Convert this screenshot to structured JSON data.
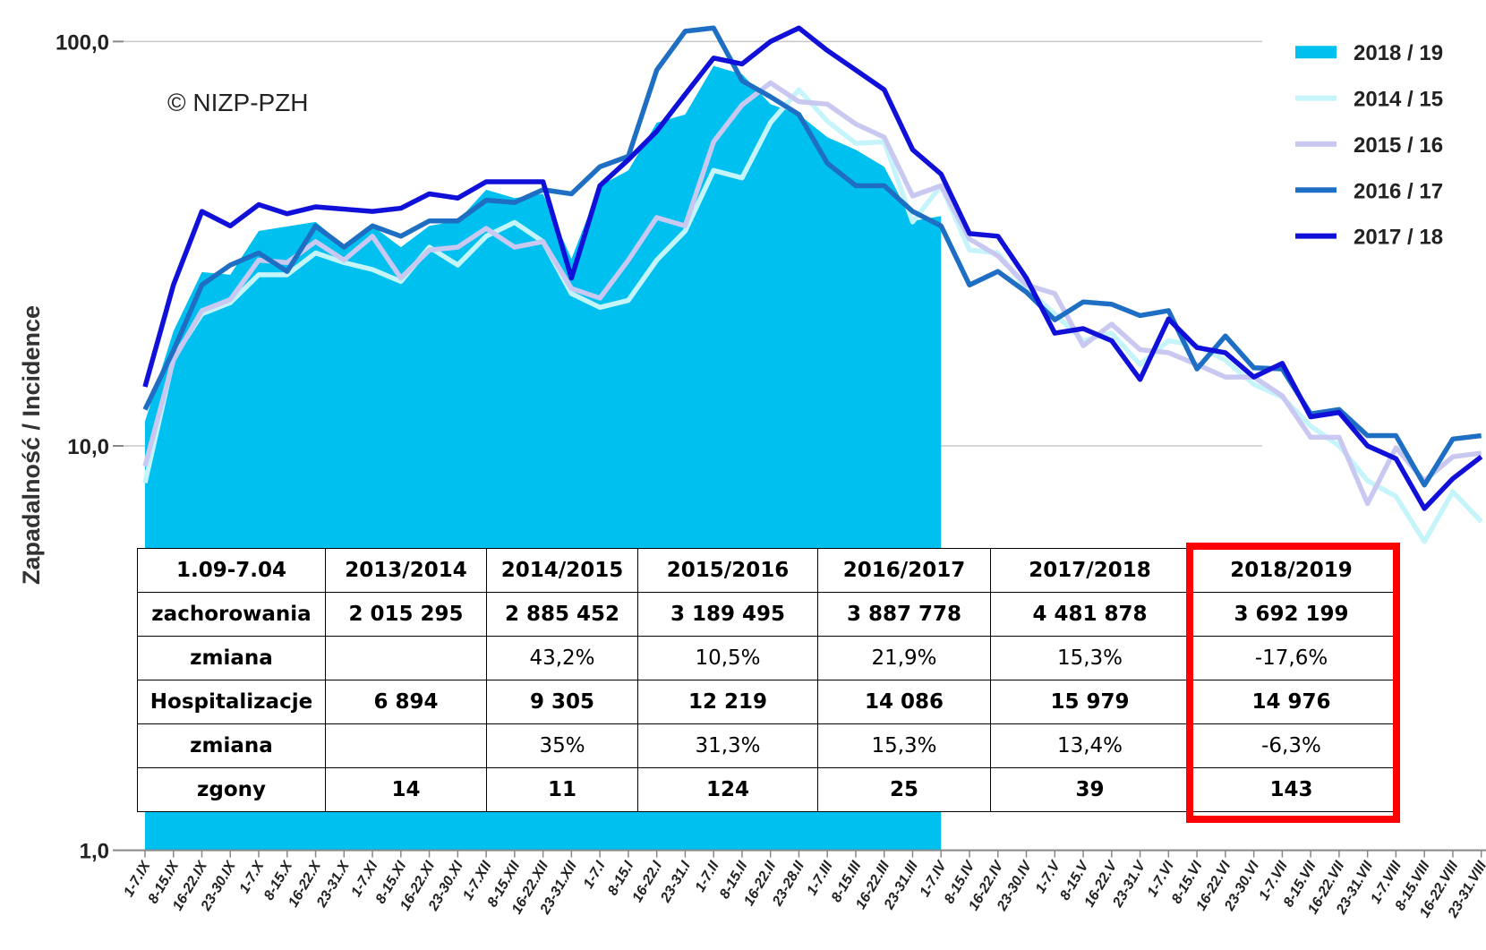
{
  "chart_data": {
    "type": "line",
    "y_label": "Zapadalność  /  Incidence",
    "annotation": "© NIZP-PZH",
    "log_scale": true,
    "grid": true,
    "legend_position": "upper right",
    "ylim": [
      1,
      120
    ],
    "yticks": [
      {
        "value": 1,
        "label": "1,0"
      },
      {
        "value": 10,
        "label": "10,0"
      },
      {
        "value": 100,
        "label": "100,0"
      }
    ],
    "categories": [
      "1-7.IX",
      "8-15.IX",
      "16-22.IX",
      "23-30.IX",
      "1-7.X",
      "8-15.X",
      "16-22.X",
      "23-31.X",
      "1-7.XI",
      "8-15.XI",
      "16-22.XI",
      "23-30.XI",
      "1-7.XII",
      "8-15.XII",
      "16-22.XII",
      "23-31.XII",
      "1-7.I",
      "8-15.I",
      "16-22.I",
      "23-31.I",
      "1-7.II",
      "8-15.II",
      "16-22.II",
      "23-28.II",
      "1-7.III",
      "8-15.III",
      "16-22.III",
      "23-31.III",
      "1-7.IV",
      "8-15.IV",
      "16-22.IV",
      "23-30.IV",
      "1-7.V",
      "8-15.V",
      "16-22.V",
      "23-31.V",
      "1-7.VI",
      "8-15.VI",
      "16-22.VI",
      "23-30.VI",
      "1-7.VII",
      "8-15.VII",
      "16-22.VII",
      "23-31.VII",
      "1-7.VIII",
      "8-15.VIII",
      "16-22.VIII",
      "23-31.VIII"
    ],
    "series": [
      {
        "name": "2018 / 19",
        "color": "#00c0f0",
        "style": "area",
        "values": [
          11.5,
          19.2,
          26.9,
          26.5,
          34,
          34.9,
          35.8,
          31.3,
          35,
          31,
          35,
          36,
          43,
          41,
          42,
          29,
          44,
          48,
          63,
          66,
          87,
          83,
          70,
          66,
          58,
          54,
          49,
          36,
          37,
          null,
          null,
          null,
          null,
          null,
          null,
          null,
          null,
          null,
          null,
          null,
          null,
          null,
          null,
          null,
          null,
          null,
          null,
          null
        ]
      },
      {
        "name": "2014 / 15",
        "color": "#c5f5fa",
        "style": "line",
        "values": [
          8.1,
          16.5,
          21.2,
          22.6,
          26.5,
          26.5,
          30,
          28.4,
          27.3,
          25.5,
          31,
          28,
          33,
          35.7,
          32,
          23.8,
          22,
          22.9,
          28.8,
          34,
          48,
          46,
          63,
          76,
          63.5,
          56,
          56.5,
          35.8,
          44,
          30.5,
          30,
          24.5,
          21.2,
          18.2,
          19,
          15.9,
          18.2,
          17.7,
          16.3,
          14.2,
          13.2,
          11.2,
          10,
          8.2,
          7.5,
          5.8,
          7.7,
          6.5
        ]
      },
      {
        "name": "2015 / 16",
        "color": "#c8c8f0",
        "style": "line",
        "values": [
          8.9,
          16.3,
          21.6,
          23,
          28.8,
          28.4,
          32,
          28.8,
          33,
          26,
          30.5,
          31,
          34.5,
          31,
          32,
          24.5,
          23.2,
          28.8,
          36.7,
          35,
          56.5,
          69.7,
          79,
          71,
          70,
          62.5,
          58,
          41.5,
          44,
          32.5,
          29.5,
          25,
          23.8,
          17.7,
          20,
          17.3,
          17,
          15.9,
          14.8,
          14.8,
          13.3,
          10.5,
          10.5,
          7.2,
          9.9,
          8.2,
          9.4,
          9.6
        ]
      },
      {
        "name": "2016 / 17",
        "color": "#1e6fc4",
        "style": "line",
        "values": [
          12.3,
          17.2,
          25,
          28,
          30,
          27,
          35,
          31,
          35,
          33,
          36,
          36,
          40.5,
          40,
          43,
          42,
          49,
          52,
          85,
          106,
          108,
          80,
          73,
          66,
          50,
          44,
          44,
          38,
          35,
          25,
          27,
          24,
          20.5,
          22.7,
          22.4,
          21,
          21.6,
          15.5,
          18.7,
          15.6,
          15.5,
          12,
          12.3,
          10.6,
          10.6,
          8,
          10.4,
          10.6
        ]
      },
      {
        "name": "2017 / 18",
        "color": "#1010d8",
        "style": "line",
        "values": [
          14,
          25,
          38,
          35,
          39.5,
          37.5,
          39,
          38.5,
          38,
          38.7,
          42,
          41,
          45,
          45,
          45,
          26,
          44,
          51,
          60,
          74,
          91,
          88,
          100,
          108,
          95,
          85,
          76,
          54,
          47,
          33.5,
          33,
          26,
          19,
          19.5,
          18.2,
          14.6,
          20.6,
          17.5,
          17,
          14.8,
          16,
          11.8,
          12.1,
          10,
          9.3,
          7,
          8.3,
          9.4
        ]
      }
    ]
  },
  "table": {
    "header": [
      "1.09-7.04",
      "2013/2014",
      "2014/2015",
      "2015/2016",
      "2016/2017",
      "2017/2018",
      "2018/2019"
    ],
    "rows": [
      [
        "zachorowania",
        "2 015 295",
        "2 885 452",
        "3 189 495",
        "3 887 778",
        "4 481 878",
        "3 692 199"
      ],
      [
        "zmiana",
        null,
        "43,2%",
        "10,5%",
        "21,9%",
        "15,3%",
        "-17,6%"
      ],
      [
        "Hospitalizacje",
        "6 894",
        "9 305",
        "12 219",
        "14 086",
        "15 979",
        "14 976"
      ],
      [
        "zmiana",
        null,
        "35%",
        "31,3%",
        "15,3%",
        "13,4%",
        "-6,3%"
      ],
      [
        "zgony",
        "14",
        "11",
        "124",
        "25",
        "39",
        "143"
      ]
    ]
  }
}
